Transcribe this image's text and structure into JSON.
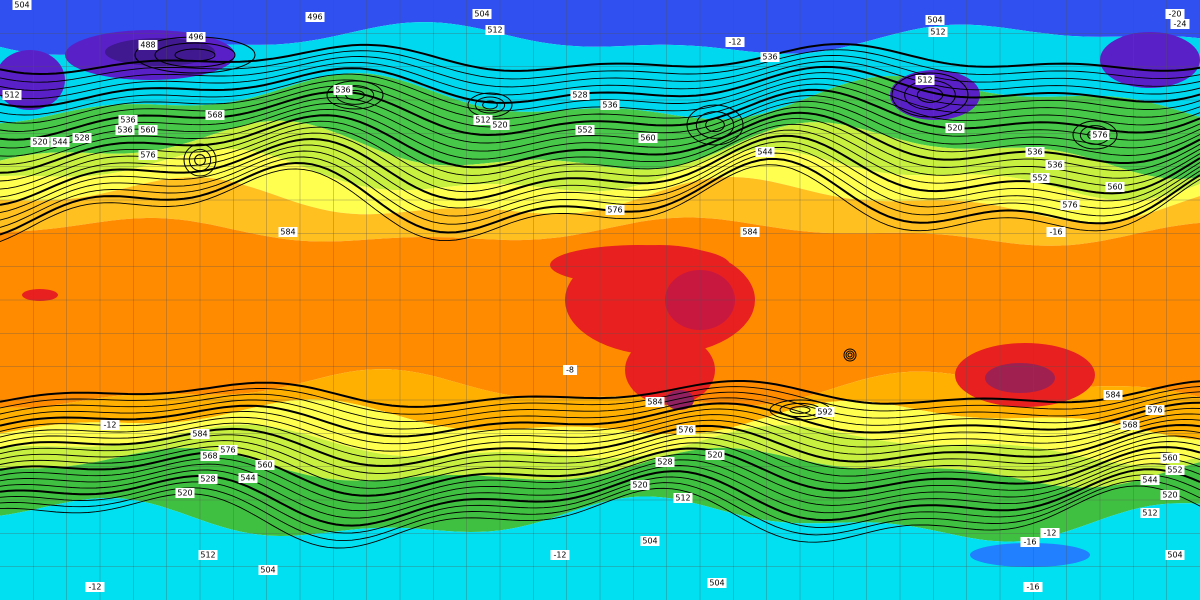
{
  "contour_labels": [
    "504",
    "496",
    "504",
    "504",
    "512",
    "-20",
    "-24",
    "488",
    "496",
    "512",
    "-12",
    "536",
    "536",
    "512",
    "512",
    "520",
    "528",
    "536",
    "512",
    "520",
    "552",
    "560",
    "536",
    "536",
    "528",
    "544",
    "560",
    "568",
    "576",
    "520",
    "576",
    "536",
    "536",
    "552",
    "560",
    "576",
    "544",
    "576",
    "584",
    "584",
    "-16",
    "-8",
    "584",
    "576",
    "568",
    "592",
    "584",
    "576",
    "568",
    "560",
    "544",
    "528",
    "520",
    "584",
    "576",
    "528",
    "520",
    "520",
    "512",
    "560",
    "552",
    "544",
    "520",
    "512",
    "512",
    "504",
    "504",
    "-12",
    "-16",
    "-12",
    "504",
    "504",
    "-12",
    "-16",
    "-12"
  ]
}
